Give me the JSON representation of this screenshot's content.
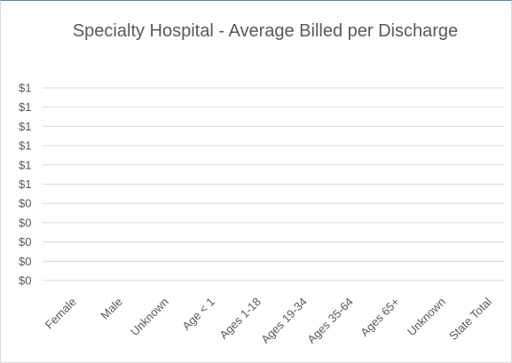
{
  "chart_data": {
    "type": "bar",
    "title": "Specialty Hospital - Average Billed per Discharge",
    "xlabel": "",
    "ylabel": "",
    "categories": [
      "Female",
      "Male",
      "Unknown",
      "Age < 1",
      "Ages 1-18",
      "Ages 19-34",
      "Ages 35-64",
      "Ages 65+",
      "Unknown",
      "State Total"
    ],
    "values": [
      0,
      0,
      0,
      0,
      0,
      0,
      0,
      0,
      0,
      0
    ],
    "y_tick_labels": [
      "$1",
      "$1",
      "$1",
      "$1",
      "$1",
      "$1",
      "$0",
      "$0",
      "$0",
      "$0",
      "$0"
    ],
    "ylim": [
      0,
      1
    ],
    "grid": true,
    "legend": "none"
  },
  "colors": {
    "gridline": "#d9d9d9",
    "text": "#595959",
    "frame_top": "#4f81bd"
  }
}
